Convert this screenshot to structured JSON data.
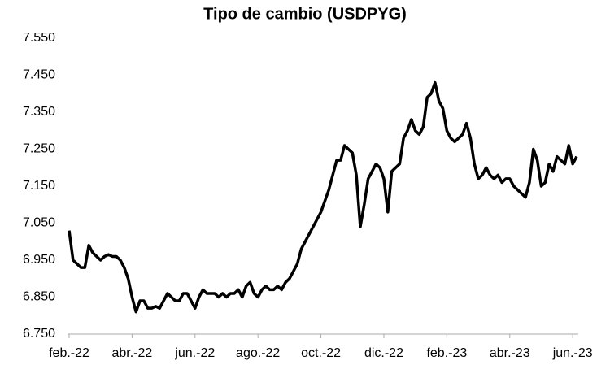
{
  "chart_data": {
    "type": "line",
    "title": "Tipo de cambio (USDPYG)",
    "categories": [
      "feb.-22",
      null,
      null,
      null,
      null,
      null,
      null,
      null,
      null,
      null,
      null,
      null,
      null,
      null,
      null,
      null,
      "abr.-22",
      null,
      null,
      null,
      null,
      null,
      null,
      null,
      null,
      null,
      null,
      null,
      null,
      null,
      null,
      null,
      "jun.-22",
      null,
      null,
      null,
      null,
      null,
      null,
      null,
      null,
      null,
      null,
      null,
      null,
      null,
      null,
      null,
      "ago.-22",
      null,
      null,
      null,
      null,
      null,
      null,
      null,
      null,
      null,
      null,
      null,
      null,
      null,
      null,
      null,
      "oct.-22",
      null,
      null,
      null,
      null,
      null,
      null,
      null,
      null,
      null,
      null,
      null,
      null,
      null,
      null,
      null,
      "dic.-22",
      null,
      null,
      null,
      null,
      null,
      null,
      null,
      null,
      null,
      null,
      null,
      null,
      null,
      null,
      null,
      "feb.-23",
      null,
      null,
      null,
      null,
      null,
      null,
      null,
      null,
      null,
      null,
      null,
      null,
      null,
      null,
      null,
      "abr.-23",
      null,
      null,
      null,
      null,
      null,
      null,
      null,
      null,
      null,
      null,
      null,
      null,
      null,
      null,
      null,
      "jun.-23",
      null
    ],
    "series": [
      {
        "color": "#000000",
        "values": [
          7030,
          6950,
          6940,
          6930,
          6930,
          6990,
          6970,
          6960,
          6950,
          6960,
          6965,
          6960,
          6960,
          6950,
          6930,
          6900,
          6850,
          6810,
          6840,
          6840,
          6820,
          6820,
          6825,
          6820,
          6840,
          6860,
          6850,
          6840,
          6840,
          6860,
          6860,
          6840,
          6820,
          6850,
          6870,
          6860,
          6860,
          6860,
          6850,
          6860,
          6850,
          6860,
          6860,
          6870,
          6850,
          6880,
          6890,
          6860,
          6850,
          6870,
          6880,
          6870,
          6870,
          6880,
          6870,
          6890,
          6900,
          6920,
          6940,
          6980,
          7000,
          7020,
          7040,
          7060,
          7080,
          7110,
          7140,
          7180,
          7220,
          7220,
          7260,
          7250,
          7240,
          7180,
          7040,
          7100,
          7170,
          7190,
          7210,
          7200,
          7170,
          7080,
          7190,
          7200,
          7210,
          7280,
          7300,
          7330,
          7300,
          7290,
          7310,
          7390,
          7400,
          7430,
          7380,
          7360,
          7300,
          7280,
          7270,
          7280,
          7290,
          7320,
          7280,
          7210,
          7170,
          7180,
          7200,
          7180,
          7170,
          7180,
          7160,
          7170,
          7170,
          7150,
          7140,
          7130,
          7120,
          7160,
          7250,
          7220,
          7150,
          7160,
          7210,
          7190,
          7230,
          7220,
          7210,
          7260,
          7210,
          7230
        ]
      }
    ],
    "ylim": [
      6750,
      7550
    ],
    "yticks": [
      {
        "value": 6750,
        "label": "6.750"
      },
      {
        "value": 6850,
        "label": "6.850"
      },
      {
        "value": 6950,
        "label": "6.950"
      },
      {
        "value": 7050,
        "label": "7.050"
      },
      {
        "value": 7150,
        "label": "7.150"
      },
      {
        "value": 7250,
        "label": "7.250"
      },
      {
        "value": 7350,
        "label": "7.350"
      },
      {
        "value": 7450,
        "label": "7.450"
      },
      {
        "value": 7550,
        "label": "7.550"
      }
    ],
    "grid": false
  }
}
